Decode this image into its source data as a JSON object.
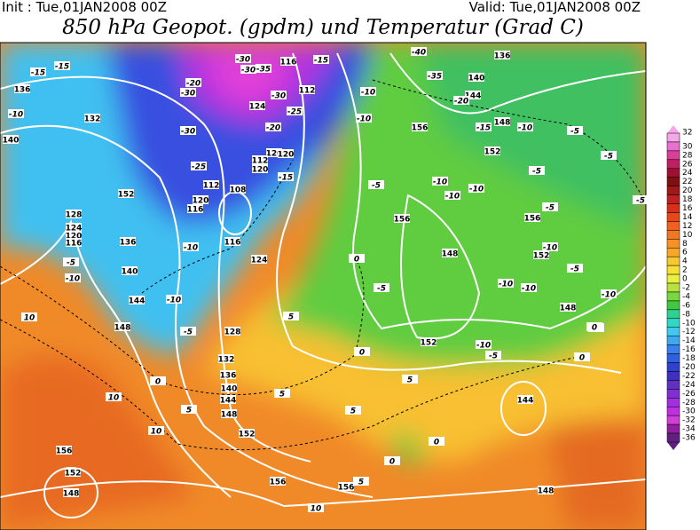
{
  "header": {
    "init": "Init : Tue,01JAN2008 00Z",
    "valid": "Valid: Tue,01JAN2008 00Z",
    "title": "850 hPa Geopot. (gpdm) und Temperatur (Grad C)"
  },
  "geopotential_labels": [
    136,
    140,
    144,
    148,
    152,
    156,
    152,
    148,
    148,
    152,
    144,
    148,
    156,
    156,
    136,
    140,
    132,
    152,
    128,
    124,
    120,
    116,
    136,
    140,
    144,
    148,
    116,
    124,
    128,
    132,
    136,
    140,
    144,
    148,
    152,
    156,
    152,
    148,
    156,
    156,
    112,
    116,
    124,
    120,
    112,
    120,
    108,
    112,
    120,
    116,
    120
  ],
  "temperature_labels": [
    -15,
    -15,
    -10,
    -20,
    -30,
    -30,
    -30,
    -35,
    -30,
    -25,
    -20,
    -30,
    -25,
    -15,
    -15,
    -10,
    -10,
    -20,
    -15,
    -10,
    -5,
    -5,
    -5,
    -10,
    -5,
    -10,
    -10,
    -5,
    -10,
    -5,
    -5,
    -10,
    -10,
    -10,
    -5,
    -10,
    -5,
    -10,
    -10,
    -5,
    -5,
    -10,
    10,
    10,
    10,
    0,
    5,
    5,
    5,
    0,
    0,
    5,
    5,
    5,
    0,
    0,
    0,
    0,
    10,
    -40,
    -35,
    -5
  ],
  "colorbar": {
    "levels": [
      32,
      30,
      28,
      26,
      24,
      22,
      20,
      18,
      16,
      14,
      12,
      10,
      8,
      6,
      4,
      2,
      0,
      -2,
      -4,
      -6,
      -8,
      -10,
      -12,
      -14,
      -16,
      -18,
      -20,
      -22,
      -24,
      -26,
      -28,
      -30,
      -32,
      -34,
      -36
    ],
    "colors": [
      "#f4a8e8",
      "#e870d0",
      "#d84098",
      "#c02060",
      "#a01030",
      "#801010",
      "#a01818",
      "#c02020",
      "#d83018",
      "#e84818",
      "#f06020",
      "#f07820",
      "#f89028",
      "#f8a828",
      "#f8c830",
      "#f8e038",
      "#e8f040",
      "#b8e040",
      "#78d840",
      "#40c840",
      "#30d090",
      "#30d8c8",
      "#40c8f0",
      "#40a8f0",
      "#3880f0",
      "#3060e0",
      "#3040d0",
      "#4030c0",
      "#6030c0",
      "#8030d0",
      "#a030e0",
      "#c030e0",
      "#d040d8",
      "#9020a0",
      "#602080"
    ]
  }
}
